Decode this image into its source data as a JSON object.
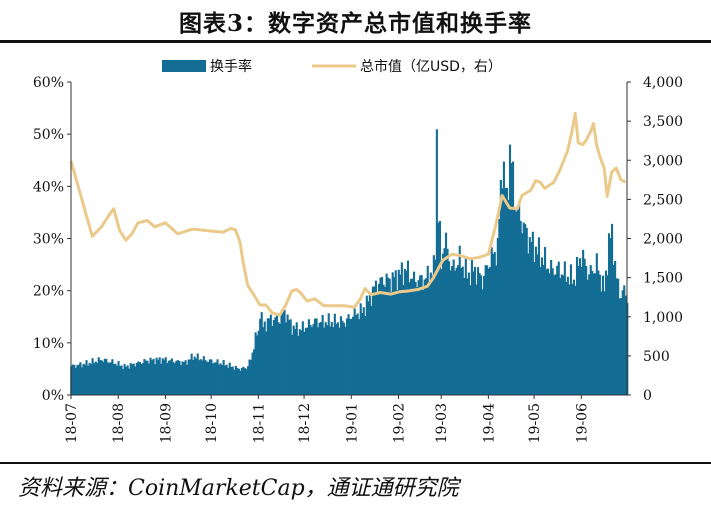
{
  "title": "图表3：数字资产总市值和换手率",
  "source": "资料来源：CoinMarketCap，通证通研究院",
  "chart_data": {
    "type": "bar+line",
    "legend": {
      "position": "top-center",
      "items": [
        {
          "name": "换手率",
          "kind": "bar",
          "color": "#136d94"
        },
        {
          "name": "总市值（亿USD，右）",
          "kind": "line",
          "color": "#ebc98a"
        }
      ]
    },
    "left_axis": {
      "ylim": [
        0,
        60
      ],
      "ticks": [
        "0%",
        "10%",
        "20%",
        "30%",
        "40%",
        "50%",
        "60%"
      ]
    },
    "right_axis": {
      "ylim": [
        0,
        4000
      ],
      "ticks": [
        "0",
        "500",
        "1,000",
        "1,500",
        "2,000",
        "2,500",
        "3,000",
        "3,500",
        "4,000"
      ]
    },
    "x_ticks": [
      "18-07",
      "18-08",
      "18-09",
      "18-10",
      "18-11",
      "18-12",
      "19-01",
      "19-02",
      "19-03",
      "19-04",
      "19-05",
      "19-06"
    ],
    "grid": false,
    "turnover_pct": [
      [
        0,
        5.5
      ],
      [
        10,
        6.0
      ],
      [
        20,
        6.8
      ],
      [
        28,
        6.2
      ],
      [
        35,
        5.4
      ],
      [
        50,
        6.6
      ],
      [
        60,
        6.8
      ],
      [
        75,
        6.2
      ],
      [
        80,
        7.4
      ],
      [
        90,
        6.6
      ],
      [
        100,
        6.0
      ],
      [
        110,
        5.0
      ],
      [
        115,
        5.2
      ],
      [
        118,
        6.8
      ],
      [
        121,
        11
      ],
      [
        123,
        12
      ],
      [
        124,
        16.5
      ],
      [
        126,
        13
      ],
      [
        130,
        14.5
      ],
      [
        137,
        14.5
      ],
      [
        140,
        16
      ],
      [
        145,
        13
      ],
      [
        150,
        12.5
      ],
      [
        160,
        14
      ],
      [
        170,
        14
      ],
      [
        180,
        14
      ],
      [
        185,
        15.5
      ],
      [
        191,
        16
      ],
      [
        195,
        18
      ],
      [
        200,
        21
      ],
      [
        205,
        22
      ],
      [
        210,
        22
      ],
      [
        215,
        23
      ],
      [
        220,
        24
      ],
      [
        225,
        22
      ],
      [
        232,
        22
      ],
      [
        238,
        24
      ],
      [
        239,
        28
      ],
      [
        240,
        51
      ],
      [
        241,
        35
      ],
      [
        243,
        25
      ],
      [
        245,
        30
      ],
      [
        250,
        24
      ],
      [
        255,
        26
      ],
      [
        260,
        23
      ],
      [
        265,
        24
      ],
      [
        270,
        22
      ],
      [
        275,
        26
      ],
      [
        280,
        28
      ],
      [
        283,
        45
      ],
      [
        286,
        37
      ],
      [
        288,
        47
      ],
      [
        292,
        36
      ],
      [
        295,
        34
      ],
      [
        300,
        30
      ],
      [
        305,
        28
      ],
      [
        310,
        26
      ],
      [
        315,
        24
      ],
      [
        320,
        24
      ],
      [
        325,
        23
      ],
      [
        330,
        22
      ],
      [
        335,
        27
      ],
      [
        340,
        23
      ],
      [
        345,
        25
      ],
      [
        350,
        20
      ],
      [
        353,
        29
      ],
      [
        355,
        31
      ],
      [
        358,
        22
      ],
      [
        361,
        19
      ],
      [
        363,
        20
      ],
      [
        365,
        19
      ]
    ],
    "market_cap_usd_100m": [
      [
        0,
        2990
      ],
      [
        5,
        2650
      ],
      [
        10,
        2300
      ],
      [
        14,
        2030
      ],
      [
        20,
        2150
      ],
      [
        25,
        2300
      ],
      [
        28,
        2380
      ],
      [
        32,
        2100
      ],
      [
        36,
        1980
      ],
      [
        40,
        2060
      ],
      [
        44,
        2200
      ],
      [
        50,
        2230
      ],
      [
        55,
        2150
      ],
      [
        62,
        2200
      ],
      [
        70,
        2060
      ],
      [
        80,
        2120
      ],
      [
        90,
        2100
      ],
      [
        100,
        2080
      ],
      [
        105,
        2130
      ],
      [
        108,
        2110
      ],
      [
        111,
        1950
      ],
      [
        113,
        1700
      ],
      [
        116,
        1400
      ],
      [
        120,
        1280
      ],
      [
        124,
        1150
      ],
      [
        128,
        1150
      ],
      [
        132,
        1050
      ],
      [
        137,
        1020
      ],
      [
        141,
        1150
      ],
      [
        145,
        1330
      ],
      [
        148,
        1350
      ],
      [
        151,
        1300
      ],
      [
        155,
        1200
      ],
      [
        160,
        1230
      ],
      [
        166,
        1140
      ],
      [
        172,
        1140
      ],
      [
        180,
        1140
      ],
      [
        186,
        1120
      ],
      [
        190,
        1230
      ],
      [
        193,
        1360
      ],
      [
        197,
        1280
      ],
      [
        203,
        1310
      ],
      [
        210,
        1290
      ],
      [
        216,
        1320
      ],
      [
        222,
        1330
      ],
      [
        228,
        1350
      ],
      [
        234,
        1390
      ],
      [
        238,
        1500
      ],
      [
        241,
        1610
      ],
      [
        244,
        1720
      ],
      [
        247,
        1760
      ],
      [
        250,
        1800
      ],
      [
        256,
        1780
      ],
      [
        262,
        1740
      ],
      [
        268,
        1760
      ],
      [
        274,
        1800
      ],
      [
        279,
        2180
      ],
      [
        283,
        2550
      ],
      [
        288,
        2390
      ],
      [
        293,
        2380
      ],
      [
        296,
        2550
      ],
      [
        302,
        2620
      ],
      [
        305,
        2740
      ],
      [
        308,
        2720
      ],
      [
        311,
        2640
      ],
      [
        314,
        2680
      ],
      [
        317,
        2720
      ],
      [
        321,
        2880
      ],
      [
        326,
        3120
      ],
      [
        329,
        3380
      ],
      [
        331,
        3600
      ],
      [
        333,
        3220
      ],
      [
        336,
        3200
      ],
      [
        338,
        3250
      ],
      [
        341,
        3360
      ],
      [
        343,
        3470
      ],
      [
        345,
        3200
      ],
      [
        347,
        3060
      ],
      [
        350,
        2900
      ],
      [
        352,
        2540
      ],
      [
        355,
        2850
      ],
      [
        358,
        2900
      ],
      [
        361,
        2750
      ],
      [
        364,
        2720
      ]
    ]
  }
}
